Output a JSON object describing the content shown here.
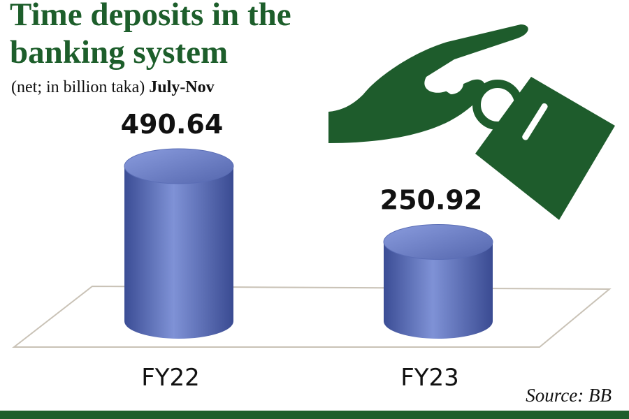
{
  "chart_data": {
    "type": "cylinder",
    "title": "Time deposits in the banking system",
    "subtitle": "(net; in billion taka)",
    "period": "July-Nov",
    "categories": [
      "FY22",
      "FY23"
    ],
    "values": [
      490.64,
      250.92
    ],
    "color": "#5a6db5",
    "source": "Source: BB"
  }
}
